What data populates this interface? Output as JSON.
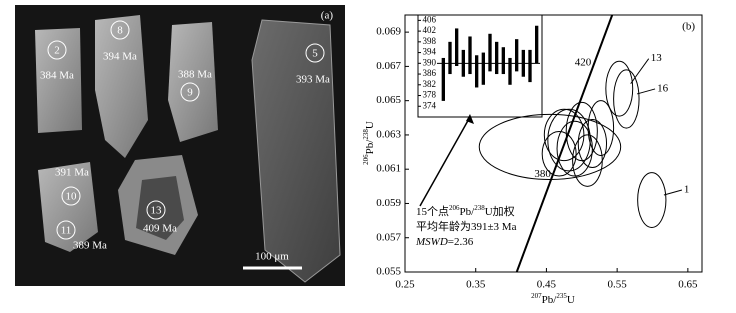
{
  "cl_image": {
    "label": "(a)",
    "scale_bar": "100 μm",
    "grains": [
      {
        "spot": "2",
        "age": "384 Ma"
      },
      {
        "spot": "8",
        "age": "394 Ma"
      },
      {
        "spot": "9",
        "age": "388 Ma"
      },
      {
        "spot": "5",
        "age": "393 Ma"
      },
      {
        "spot": "10",
        "age": "391 Ma"
      },
      {
        "spot": "11",
        "age": "389 Ma"
      },
      {
        "spot": "13",
        "age": "409 Ma"
      }
    ]
  },
  "chart_data": {
    "type": "concordia",
    "label": "(b)",
    "x_label": [
      "207",
      "Pb/",
      "235",
      "U"
    ],
    "y_label": [
      "206",
      "Pb/",
      "238",
      "U"
    ],
    "xlim": [
      0.25,
      0.67
    ],
    "ylim": [
      0.055,
      0.07
    ],
    "xticks": [
      {
        "value": 0.25,
        "label": "0.25"
      },
      {
        "value": 0.35,
        "label": "0.35"
      },
      {
        "value": 0.45,
        "label": "0.45"
      },
      {
        "value": 0.55,
        "label": "0.55"
      },
      {
        "value": 0.65,
        "label": "0.65"
      }
    ],
    "yticks": [
      0.055,
      0.057,
      0.059,
      0.061,
      0.063,
      0.065,
      0.067,
      0.069
    ],
    "concordia": {
      "x": [
        0.408,
        0.543
      ],
      "y": [
        0.055,
        0.07
      ],
      "ages": [
        {
          "label": "420",
          "x": 0.519,
          "y": 0.0672
        },
        {
          "label": "380",
          "x": 0.462,
          "y": 0.0607
        }
      ]
    },
    "ellipses": [
      {
        "x": 0.455,
        "y": 0.0623,
        "x_err": 0.1,
        "y_err": 0.0019
      },
      {
        "x": 0.599,
        "y": 0.0592,
        "x_err": 0.02,
        "y_err": 0.0016,
        "name": "1"
      },
      {
        "x": 0.553,
        "y": 0.0657,
        "x_err": 0.019,
        "y_err": 0.0016,
        "name": "13"
      },
      {
        "x": 0.563,
        "y": 0.0651,
        "x_err": 0.018,
        "y_err": 0.0017,
        "name": "16"
      },
      {
        "x": 0.482,
        "y": 0.0627,
        "x_err": 0.03,
        "y_err": 0.0018
      },
      {
        "x": 0.49,
        "y": 0.0622,
        "x_err": 0.025,
        "y_err": 0.0016
      },
      {
        "x": 0.475,
        "y": 0.063,
        "x_err": 0.028,
        "y_err": 0.0015
      },
      {
        "x": 0.5,
        "y": 0.0632,
        "x_err": 0.022,
        "y_err": 0.0017
      },
      {
        "x": 0.515,
        "y": 0.0625,
        "x_err": 0.02,
        "y_err": 0.0014
      },
      {
        "x": 0.527,
        "y": 0.0634,
        "x_err": 0.018,
        "y_err": 0.0016
      },
      {
        "x": 0.468,
        "y": 0.0619,
        "x_err": 0.024,
        "y_err": 0.0013
      },
      {
        "x": 0.508,
        "y": 0.0615,
        "x_err": 0.021,
        "y_err": 0.0015
      }
    ],
    "inset": {
      "ylim": [
        370,
        408
      ],
      "yticks": [
        374,
        378,
        382,
        386,
        390,
        394,
        398,
        402,
        406
      ],
      "mean_value": 390,
      "values": [
        384,
        392,
        396,
        390,
        393,
        387,
        388,
        394,
        392,
        391,
        387,
        393,
        390,
        389,
        397
      ],
      "errors": [
        8,
        6,
        7,
        5,
        7,
        6,
        6,
        7,
        6,
        5,
        5,
        6,
        5,
        6,
        7
      ]
    },
    "annotation": [
      [
        "15个点",
        "206",
        "Pb/",
        "238",
        "U加权"
      ],
      [
        "平均年龄为391±3 Ma"
      ],
      [
        "MSWD",
        "=2.36"
      ]
    ]
  }
}
